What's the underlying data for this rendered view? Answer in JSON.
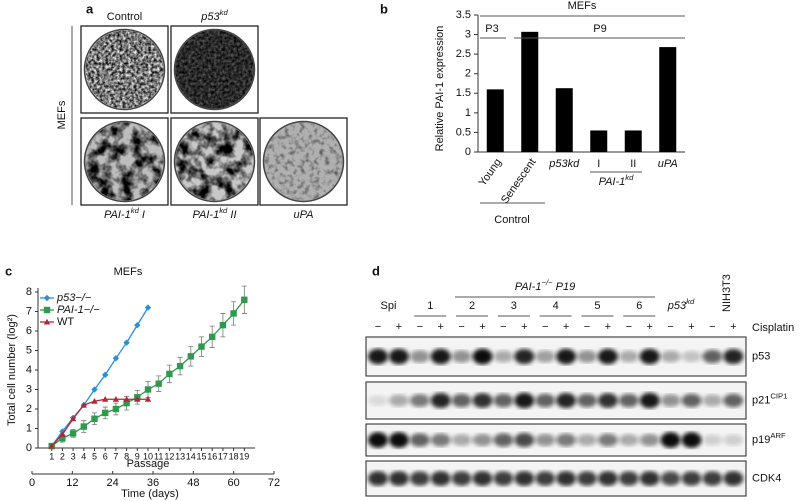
{
  "panel_labels": [
    "a",
    "b",
    "c",
    "d"
  ],
  "panel_a": {
    "side_label": "MEFs",
    "plates": [
      {
        "label": "Control"
      },
      {
        "label": "p53",
        "sup": "kd"
      },
      {
        "label": "PAI-1",
        "sup": "kd",
        "suffix": " I"
      },
      {
        "label": "PAI-1",
        "sup": "kd",
        "suffix": " II"
      },
      {
        "label": "uPA"
      }
    ]
  },
  "chart_data": [
    {
      "type": "bar",
      "y_label": "Relative PAI-1 expression",
      "categories": [
        "Young",
        "Senescent",
        "p53kd",
        "I",
        "II",
        "uPA"
      ],
      "values": [
        1.6,
        3.07,
        1.63,
        0.55,
        0.55,
        2.68
      ],
      "color": "#000000",
      "ylim": [
        0,
        3.5
      ],
      "yticks": [
        0,
        0.5,
        1,
        1.5,
        2,
        2.5,
        3,
        3.5
      ],
      "top_label": "MEFs",
      "passage_labels": [
        "P3",
        "P9"
      ],
      "subgroup": {
        "label": "PAI-1",
        "sup": "kd"
      },
      "group_label": "Control"
    },
    {
      "type": "line",
      "title": "MEFs",
      "y_label": "Total cell number (log²)",
      "x_label": "Passage",
      "x2_label": "Time (days)",
      "x": [
        1,
        2,
        3,
        4,
        5,
        6,
        7,
        8,
        9,
        10,
        11,
        12,
        13,
        14,
        15,
        16,
        17,
        18,
        19
      ],
      "series": [
        {
          "name": "p53−/−",
          "color": "#2a8fd8",
          "marker": "diamond",
          "values": [
            0.1,
            0.85,
            1.55,
            2.2,
            3.0,
            3.75,
            4.6,
            5.4,
            6.3,
            7.2,
            null,
            null,
            null,
            null,
            null,
            null,
            null,
            null,
            null
          ]
        },
        {
          "name": "PAI-1−/−",
          "color": "#2e9a4e",
          "marker": "square",
          "values": [
            0.1,
            0.5,
            0.75,
            1.1,
            1.5,
            1.8,
            2.0,
            2.3,
            2.6,
            3.0,
            3.3,
            3.8,
            4.2,
            4.7,
            5.2,
            5.7,
            6.3,
            6.9,
            7.6
          ],
          "errors": [
            0.1,
            0.2,
            0.2,
            0.3,
            0.3,
            0.3,
            0.3,
            0.35,
            0.35,
            0.4,
            0.4,
            0.45,
            0.45,
            0.5,
            0.5,
            0.55,
            0.6,
            0.6,
            0.7
          ]
        },
        {
          "name": "WT",
          "color": "#b2283a",
          "marker": "triangle",
          "values": [
            0.1,
            0.7,
            1.5,
            2.2,
            2.4,
            2.5,
            2.5,
            2.5,
            2.5,
            2.5,
            null,
            null,
            null,
            null,
            null,
            null,
            null,
            null,
            null
          ]
        }
      ],
      "xlim": [
        0,
        20
      ],
      "xticks": [
        1,
        2,
        3,
        4,
        5,
        6,
        7,
        8,
        9,
        10,
        11,
        12,
        13,
        14,
        15,
        16,
        17,
        18,
        19
      ],
      "ylim": [
        0,
        8
      ],
      "yticks": [
        0,
        1,
        2,
        3,
        4,
        5,
        6,
        7,
        8
      ],
      "x2lim": [
        0,
        72
      ],
      "x2ticks": [
        0,
        12,
        24,
        36,
        48,
        60,
        72
      ],
      "legend": "upper-left"
    }
  ],
  "panel_d": {
    "header": {
      "label": "PAI-1",
      "sup": "−/−",
      "suffix": " P19"
    },
    "lanes": [
      {
        "label": "Spi"
      },
      {
        "label": "1"
      },
      {
        "label": "2"
      },
      {
        "label": "3"
      },
      {
        "label": "4"
      },
      {
        "label": "5"
      },
      {
        "label": "6"
      },
      {
        "label": "p53",
        "sup": "kd"
      },
      {
        "label": "NIH3T3"
      }
    ],
    "treatment_signs": [
      "−",
      "+",
      "−",
      "+",
      "−",
      "+",
      "−",
      "+",
      "−",
      "+",
      "−",
      "+",
      "−",
      "+",
      "−",
      "+",
      "−",
      "+"
    ],
    "treatment": "Cisplatin",
    "blots": [
      {
        "label": "p53"
      },
      {
        "label": "p21",
        "sup": "CIP1"
      },
      {
        "label": "p19",
        "sup": "ARF"
      },
      {
        "label": "CDK4"
      }
    ]
  }
}
